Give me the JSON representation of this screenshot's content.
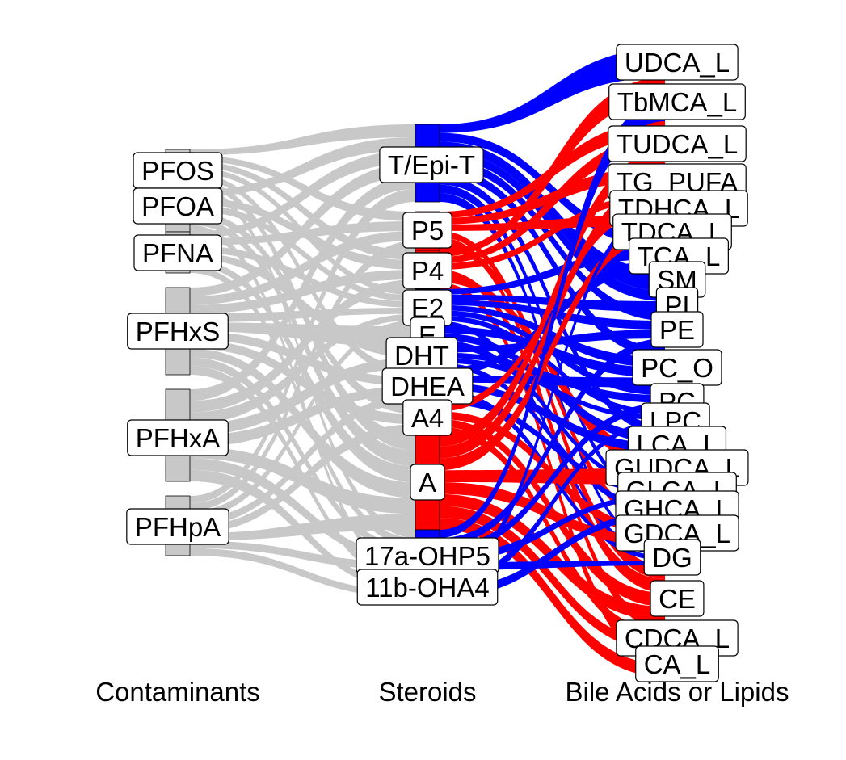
{
  "chart_data": {
    "type": "alluvial",
    "axes": [
      "Contaminants",
      "Steroids",
      "Bile Acids or Lipids"
    ],
    "colors": {
      "positive": "#0000FF",
      "negative": "#FF0000",
      "first_stage": "#C8C8C8",
      "stratum": "#C8C8C8"
    },
    "columns": {
      "Contaminants": [
        "PFOS",
        "PFOA",
        "PFNA",
        "PFHxS",
        "PFHxA",
        "PFHpA"
      ],
      "Steroids": [
        "T/Epi-T",
        "P5",
        "P4",
        "E2",
        "E",
        "DHT",
        "DHEA",
        "A4",
        "A",
        "17a-OHP5",
        "11b-OHA4"
      ],
      "Bile Acids or Lipids": [
        "UDCA_L",
        "TbMCA_L",
        "TUDCA_L",
        "TG_PUFA",
        "TDHCA_L",
        "TDCA_L",
        "TCA_L",
        "SM",
        "PI",
        "PE",
        "PC_O",
        "PC",
        "LPC",
        "LCA_L",
        "GUDCA_L",
        "GLCA_L",
        "GHCA_L",
        "GDCA_L",
        "DG",
        "CE",
        "CDCA_L",
        "CA_L"
      ]
    },
    "steroid_color": {
      "T/Epi-T": "positive",
      "P5": "negative",
      "P4": "negative",
      "E2": "positive",
      "E": "positive",
      "DHT": "positive",
      "DHEA": "positive",
      "A4": "negative",
      "A": "negative",
      "17a-OHP5": "positive",
      "11b-OHA4": "positive"
    },
    "flows_stage1": [
      {
        "from": "PFOS",
        "to": [
          "T/Epi-T",
          "P5",
          "P4",
          "E2",
          "DHEA",
          "A",
          "17a-OHP5"
        ]
      },
      {
        "from": "PFOA",
        "to": [
          "T/Epi-T",
          "P4",
          "E2",
          "A4",
          "A",
          "11b-OHA4"
        ]
      },
      {
        "from": "PFNA",
        "to": [
          "T/Epi-T",
          "P5",
          "E2",
          "DHT",
          "A",
          "17a-OHP5"
        ]
      },
      {
        "from": "PFHxS",
        "to": [
          "T/Epi-T",
          "P5",
          "P4",
          "E2",
          "E",
          "DHEA",
          "A4",
          "A",
          "17a-OHP5",
          "11b-OHA4"
        ]
      },
      {
        "from": "PFHxA",
        "to": [
          "T/Epi-T",
          "P4",
          "E2",
          "DHT",
          "DHEA",
          "A",
          "17a-OHP5",
          "11b-OHA4"
        ]
      },
      {
        "from": "PFHpA",
        "to": [
          "T/Epi-T",
          "P5",
          "E2",
          "DHEA",
          "A4",
          "A",
          "17a-OHP5",
          "11b-OHA4"
        ]
      }
    ],
    "flows_stage2": [
      {
        "from": "T/Epi-T",
        "to": [
          "UDCA_L",
          "TCA_L",
          "SM",
          "PI",
          "PE",
          "PC_O",
          "LCA_L",
          "GHCA_L",
          "DG"
        ]
      },
      {
        "from": "P5",
        "to": [
          "TUDCA_L",
          "TG_PUFA",
          "TDCA_L",
          "CE",
          "CDCA_L",
          "GDCA_L"
        ]
      },
      {
        "from": "P4",
        "to": [
          "TbMCA_L",
          "TUDCA_L",
          "TDHCA_L",
          "CE",
          "GUDCA_L",
          "CA_L"
        ]
      },
      {
        "from": "E2",
        "to": [
          "TCA_L",
          "PI",
          "PE",
          "PC_O",
          "PC",
          "LPC",
          "DG"
        ]
      },
      {
        "from": "E",
        "to": [
          "PC_O",
          "LCA_L",
          "GLCA_L"
        ]
      },
      {
        "from": "DHT",
        "to": [
          "PE",
          "PC",
          "LPC",
          "GHCA_L"
        ]
      },
      {
        "from": "DHEA",
        "to": [
          "TCA_L",
          "PC_O",
          "LCA_L",
          "DG",
          "GLCA_L"
        ]
      },
      {
        "from": "A4",
        "to": [
          "TDHCA_L",
          "GDCA_L",
          "CE",
          "CDCA_L"
        ]
      },
      {
        "from": "A",
        "to": [
          "TUDCA_L",
          "TG_PUFA",
          "TDCA_L",
          "GUDCA_L",
          "GDCA_L",
          "CE",
          "CDCA_L",
          "CA_L"
        ]
      },
      {
        "from": "17a-OHP5",
        "to": [
          "TbMCA_L",
          "PE",
          "PC",
          "GLCA_L",
          "DG"
        ]
      },
      {
        "from": "11b-OHA4",
        "to": [
          "TDHCA_L",
          "LPC",
          "GHCA_L"
        ]
      }
    ],
    "title": "",
    "legend": "none"
  }
}
